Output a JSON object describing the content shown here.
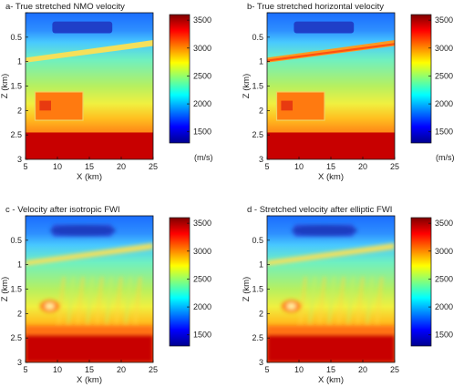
{
  "colors": {
    "colormap": [
      "#00008f",
      "#0000ff",
      "#007fff",
      "#00ffff",
      "#7fff7f",
      "#ffff00",
      "#ff7f00",
      "#ff0000",
      "#7f0000"
    ],
    "layer_band": "#f5e05a",
    "block_fill": "#ff7a10",
    "block_core": "#e83a10",
    "bottom_layer": "#c80000"
  },
  "chart_data": [
    {
      "type": "heatmap",
      "title": "a- True stretched NMO velocity",
      "xlabel": "X (km)",
      "ylabel": "Z (km)",
      "xlim": [
        5,
        25
      ],
      "ylim": [
        3,
        0
      ],
      "xticks": [
        "5",
        "10",
        "15",
        "20",
        "25"
      ],
      "yticks": [
        "0.5",
        "1",
        "1.5",
        "2",
        "2.5",
        "3"
      ],
      "colorbar": {
        "range": [
          1300,
          3600
        ],
        "ticks": [
          "3500",
          "3000",
          "2500",
          "2000",
          "1500"
        ],
        "unit": "(m/s)"
      },
      "variant": "true-sharp"
    },
    {
      "type": "heatmap",
      "title": "b- True stretched horizontal velocity",
      "xlabel": "X (km)",
      "ylabel": "Z (km)",
      "xlim": [
        5,
        25
      ],
      "ylim": [
        3,
        0
      ],
      "xticks": [
        "5",
        "10",
        "15",
        "20",
        "25"
      ],
      "yticks": [
        "0.5",
        "1",
        "1.5",
        "2",
        "2.5",
        "3"
      ],
      "colorbar": {
        "range": [
          1300,
          3600
        ],
        "ticks": [
          "3500",
          "3000",
          "2500",
          "2000",
          "1500"
        ],
        "unit": "(m/s)"
      },
      "variant": "true-sharp"
    },
    {
      "type": "heatmap",
      "title": "c - Velocity after isotropic FWI",
      "xlabel": "X (km)",
      "ylabel": "Z (km)",
      "xlim": [
        5,
        25
      ],
      "ylim": [
        3,
        0
      ],
      "xticks": [
        "5",
        "10",
        "15",
        "20",
        "25"
      ],
      "yticks": [
        "0.5",
        "1",
        "1.5",
        "2",
        "2.5",
        "3"
      ],
      "colorbar": {
        "range": [
          1300,
          3600
        ],
        "ticks": [
          "3500",
          "3000",
          "2500",
          "2000",
          "1500"
        ],
        "unit": ""
      },
      "variant": "inverted-smooth"
    },
    {
      "type": "heatmap",
      "title": "d - Stretched velocity after elliptic FWI",
      "xlabel": "X (km)",
      "ylabel": "Z (km)",
      "xlim": [
        5,
        25
      ],
      "ylim": [
        3,
        0
      ],
      "xticks": [
        "5",
        "10",
        "15",
        "20",
        "25"
      ],
      "yticks": [
        "0.5",
        "1",
        "1.5",
        "2",
        "2.5",
        "3"
      ],
      "colorbar": {
        "range": [
          1300,
          3600
        ],
        "ticks": [
          "3500",
          "3000",
          "2500",
          "2000",
          "1500"
        ],
        "unit": ""
      },
      "variant": "inverted-smooth"
    }
  ]
}
